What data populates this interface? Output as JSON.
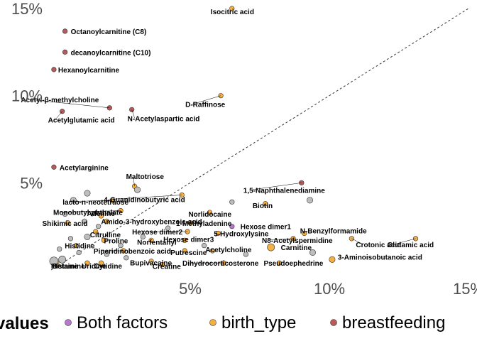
{
  "chart_data": {
    "type": "scatter",
    "title": "",
    "xlabel": "",
    "ylabel": "",
    "xlim": [
      0,
      0.15
    ],
    "ylim": [
      0,
      0.15
    ],
    "x_ticks": [
      {
        "value": 0.05,
        "label": "5%"
      },
      {
        "value": 0.1,
        "label": "10%"
      },
      {
        "value": 0.15,
        "label": "15%"
      }
    ],
    "y_ticks": [
      {
        "value": 0.05,
        "label": "5%"
      },
      {
        "value": 0.1,
        "label": "10%"
      },
      {
        "value": 0.15,
        "label": "15%"
      }
    ],
    "reference_line": {
      "slope": 1,
      "intercept": 0,
      "style": "dashed"
    },
    "grid": false,
    "legend": {
      "title": "values",
      "position": "bottom",
      "entries": [
        {
          "label": "Both factors",
          "color": "#b678cc"
        },
        {
          "label": "birth_type",
          "color": "#f5b041"
        },
        {
          "label": "breastfeeding",
          "color": "#b65a5a"
        }
      ]
    },
    "unlabeled_color": "#bdbdbd",
    "points": [
      {
        "label": "Isocitric acid",
        "x": 0.065,
        "y": 0.15,
        "group": "birth_type",
        "size": 2
      },
      {
        "label": "Octanoylcarnitine (C8)",
        "x": 0.005,
        "y": 0.137,
        "group": "breastfeeding",
        "size": 2
      },
      {
        "label": "decanoylcarnitine (C10)",
        "x": 0.005,
        "y": 0.125,
        "group": "breastfeeding",
        "size": 2
      },
      {
        "label": "Hexanoylcarnitine",
        "x": 0.001,
        "y": 0.115,
        "group": "breastfeeding",
        "size": 2
      },
      {
        "label": "D-Raffinose",
        "x": 0.061,
        "y": 0.1,
        "group": "birth_type",
        "size": 2
      },
      {
        "label": "Acetyl-β-methylcholine",
        "x": 0.021,
        "y": 0.093,
        "group": "breastfeeding",
        "size": 2
      },
      {
        "label": "N-Acetylaspartic acid",
        "x": 0.029,
        "y": 0.092,
        "group": "breastfeeding",
        "size": 2
      },
      {
        "label": "Acetylglutamic acid",
        "x": 0.004,
        "y": 0.091,
        "group": "breastfeeding",
        "size": 2
      },
      {
        "label": "Acetylarginine",
        "x": 0.001,
        "y": 0.059,
        "group": "breastfeeding",
        "size": 2
      },
      {
        "label": "Maltotriose",
        "x": 0.03,
        "y": 0.048,
        "group": "birth_type",
        "size": 2
      },
      {
        "label": "1,5-Naphthalenediamine",
        "x": 0.09,
        "y": 0.05,
        "group": "breastfeeding",
        "size": 2
      },
      {
        "label": "4-Guanidinobutyric acid",
        "x": 0.047,
        "y": 0.043,
        "group": "birth_type",
        "size": 2
      },
      {
        "label": "lacto-n-neotetraose",
        "x": 0.022,
        "y": 0.04,
        "group": "birth_type",
        "size": 2
      },
      {
        "label": "Biotin",
        "x": 0.077,
        "y": 0.038,
        "group": "birth_type",
        "size": 2
      },
      {
        "label": "Monobutyl phthalate",
        "x": 0.025,
        "y": 0.034,
        "group": "birth_type",
        "size": 2
      },
      {
        "label": "Norlidocaine",
        "x": 0.057,
        "y": 0.033,
        "group": "birth_type",
        "size": 2
      },
      {
        "label": "Adenine",
        "x": 0.018,
        "y": 0.031,
        "group": "birth_type",
        "size": 2
      },
      {
        "label": "Shikimic acid",
        "x": 0.006,
        "y": 0.027,
        "group": "birth_type",
        "size": 2
      },
      {
        "label": "Amido-3-hydroxybenzoic acid",
        "x": 0.02,
        "y": 0.028,
        "group": "birth_type",
        "size": 2
      },
      {
        "label": "1-Methyladenine",
        "x": 0.05,
        "y": 0.027,
        "group": "birth_type",
        "size": 2
      },
      {
        "label": "Hexose dimer1",
        "x": 0.065,
        "y": 0.025,
        "group": "Both factors",
        "size": 2
      },
      {
        "label": "Citrulline",
        "x": 0.016,
        "y": 0.022,
        "group": "birth_type",
        "size": 2
      },
      {
        "label": "Hexose dimer2",
        "x": 0.049,
        "y": 0.022,
        "group": "birth_type",
        "size": 2
      },
      {
        "label": "5-Hydroxylysine",
        "x": 0.06,
        "y": 0.021,
        "group": "birth_type",
        "size": 2
      },
      {
        "label": "N-Benzylformamide",
        "x": 0.091,
        "y": 0.021,
        "group": "birth_type",
        "size": 2
      },
      {
        "label": "Proline",
        "x": 0.019,
        "y": 0.017,
        "group": "birth_type",
        "size": 2
      },
      {
        "label": "Norfentanyl",
        "x": 0.036,
        "y": 0.017,
        "group": "birth_type",
        "size": 2
      },
      {
        "label": "Hexose dimer3",
        "x": 0.048,
        "y": 0.017,
        "group": "birth_type",
        "size": 2
      },
      {
        "label": "N8-Acetylspermidine",
        "x": 0.087,
        "y": 0.018,
        "group": "birth_type",
        "size": 2
      },
      {
        "label": "Crotonic acid",
        "x": 0.108,
        "y": 0.018,
        "group": "birth_type",
        "size": 2
      },
      {
        "label": "Glutamic acid",
        "x": 0.131,
        "y": 0.018,
        "group": "birth_type",
        "size": 2
      },
      {
        "label": "Histidine",
        "x": 0.009,
        "y": 0.014,
        "group": "birth_type",
        "size": 2
      },
      {
        "label": "Piperidinobenzoic acid",
        "x": 0.026,
        "y": 0.011,
        "group": "birth_type",
        "size": 2
      },
      {
        "label": "Putrescine",
        "x": 0.048,
        "y": 0.011,
        "group": "birth_type",
        "size": 2
      },
      {
        "label": "Acetylcholine",
        "x": 0.058,
        "y": 0.011,
        "group": "birth_type",
        "size": 2
      },
      {
        "label": "Carnitine",
        "x": 0.079,
        "y": 0.013,
        "group": "birth_type",
        "size": 4
      },
      {
        "label": "3-Aminoisobutanoic acid",
        "x": 0.101,
        "y": 0.006,
        "group": "birth_type",
        "size": 3
      },
      {
        "label": "Pseudoephedrine",
        "x": 0.082,
        "y": 0.004,
        "group": "birth_type",
        "size": 2
      },
      {
        "label": "Dihydrocorticosterone",
        "x": 0.062,
        "y": 0.004,
        "group": "birth_type",
        "size": 2
      },
      {
        "label": "Bupivacaine",
        "x": 0.036,
        "y": 0.005,
        "group": "birth_type",
        "size": 2
      },
      {
        "label": "Creatine",
        "x": 0.04,
        "y": 0.003,
        "group": "birth_type",
        "size": 2
      },
      {
        "label": "Cytidine",
        "x": 0.018,
        "y": 0.004,
        "group": "birth_type",
        "size": 2
      },
      {
        "label": "Uridine",
        "x": 0.013,
        "y": 0.004,
        "group": "birth_type",
        "size": 2
      },
      {
        "label": "Betaine",
        "x": 0.002,
        "y": 0.004,
        "group": "birth_type",
        "size": 2
      },
      {
        "label": "Histamine",
        "x": 0.001,
        "y": 0.004,
        "group": "birth_type",
        "size": 2
      },
      {
        "label": "",
        "x": 0.001,
        "y": 0.005,
        "group": "unlabeled",
        "size": 5
      },
      {
        "label": "",
        "x": 0.004,
        "y": 0.006,
        "group": "unlabeled",
        "size": 4
      },
      {
        "label": "",
        "x": 0.013,
        "y": 0.044,
        "group": "unlabeled",
        "size": 3
      },
      {
        "label": "",
        "x": 0.031,
        "y": 0.046,
        "group": "unlabeled",
        "size": 3
      },
      {
        "label": "",
        "x": 0.008,
        "y": 0.04,
        "group": "unlabeled",
        "size": 3
      },
      {
        "label": "",
        "x": 0.005,
        "y": 0.032,
        "group": "unlabeled",
        "size": 2
      },
      {
        "label": "",
        "x": 0.012,
        "y": 0.028,
        "group": "unlabeled",
        "size": 2
      },
      {
        "label": "",
        "x": 0.017,
        "y": 0.025,
        "group": "unlabeled",
        "size": 2
      },
      {
        "label": "",
        "x": 0.013,
        "y": 0.019,
        "group": "unlabeled",
        "size": 3
      },
      {
        "label": "",
        "x": 0.007,
        "y": 0.018,
        "group": "unlabeled",
        "size": 2
      },
      {
        "label": "",
        "x": 0.025,
        "y": 0.014,
        "group": "unlabeled",
        "size": 2
      },
      {
        "label": "",
        "x": 0.02,
        "y": 0.009,
        "group": "unlabeled",
        "size": 2
      },
      {
        "label": "",
        "x": 0.01,
        "y": 0.01,
        "group": "unlabeled",
        "size": 2
      },
      {
        "label": "",
        "x": 0.033,
        "y": 0.019,
        "group": "unlabeled",
        "size": 2
      },
      {
        "label": "",
        "x": 0.042,
        "y": 0.024,
        "group": "unlabeled",
        "size": 2
      },
      {
        "label": "",
        "x": 0.055,
        "y": 0.014,
        "group": "unlabeled",
        "size": 2
      },
      {
        "label": "",
        "x": 0.07,
        "y": 0.009,
        "group": "unlabeled",
        "size": 2
      },
      {
        "label": "",
        "x": 0.094,
        "y": 0.01,
        "group": "unlabeled",
        "size": 3
      },
      {
        "label": "",
        "x": 0.093,
        "y": 0.04,
        "group": "unlabeled",
        "size": 3
      },
      {
        "label": "",
        "x": 0.065,
        "y": 0.039,
        "group": "unlabeled",
        "size": 2
      },
      {
        "label": "",
        "x": 0.003,
        "y": 0.012,
        "group": "unlabeled",
        "size": 2
      },
      {
        "label": "",
        "x": 0.027,
        "y": 0.007,
        "group": "unlabeled",
        "size": 2
      }
    ]
  }
}
